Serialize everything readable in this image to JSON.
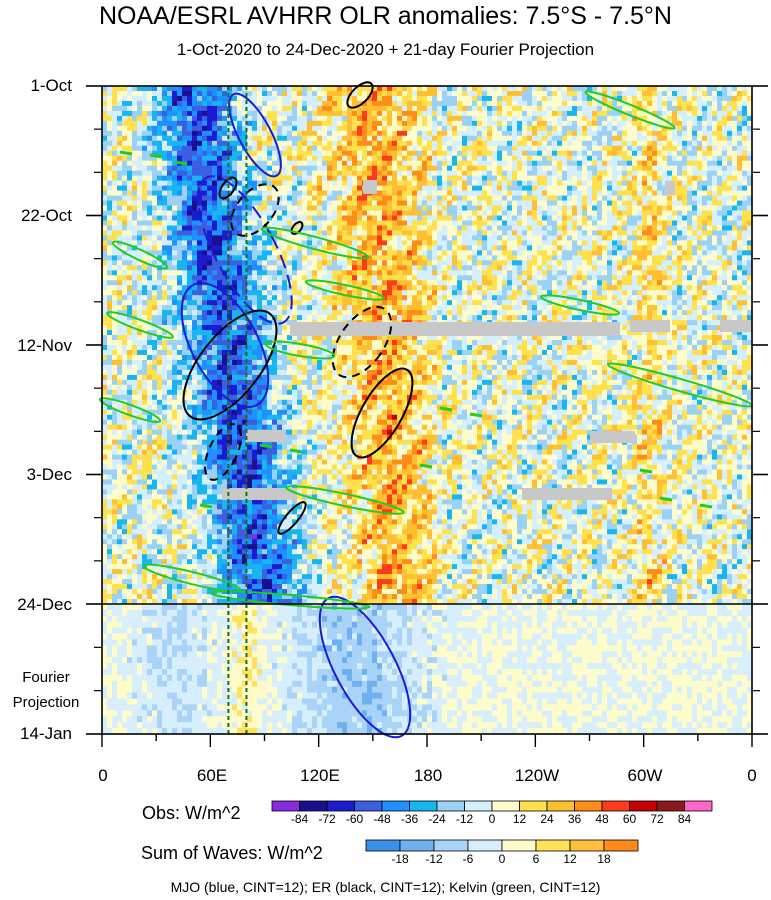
{
  "chart_data": {
    "type": "heatmap",
    "title": "NOAA/ESRL AVHRR OLR anomalies: 7.5°S - 7.5°N",
    "subtitle": "1-Oct-2020 to 24-Dec-2020 + 21-day Fourier Projection",
    "x_ticks": [
      "0",
      "60E",
      "120E",
      "180",
      "120W",
      "60W",
      "0"
    ],
    "x_range_degrees_east": [
      0,
      360
    ],
    "y_ticks": [
      "1-Oct",
      "22-Oct",
      "12-Nov",
      "3-Dec",
      "24-Dec",
      "14-Jan"
    ],
    "y_range": [
      "1-Oct-2020",
      "14-Jan-2021"
    ],
    "observation_end": "24-Dec",
    "projection_label": [
      "Fourier",
      "Projection"
    ],
    "obs_colorbar": {
      "title": "Obs: W/m^2",
      "levels": [
        -84,
        -72,
        -60,
        -48,
        -36,
        -24,
        -12,
        0,
        12,
        24,
        36,
        48,
        60,
        72,
        84
      ],
      "colors": [
        "#8a2be2",
        "#1a0f8c",
        "#1b1bd1",
        "#3a5fe0",
        "#1e90ff",
        "#18b6f0",
        "#9bd1f5",
        "#d4efff",
        "#fffccc",
        "#ffe14d",
        "#ffbf33",
        "#ff8c1a",
        "#ff3a1a",
        "#c80000",
        "#8b1a1a",
        "#ff66cc"
      ]
    },
    "waves_colorbar": {
      "title": "Sum of Waves: W/m^2",
      "levels": [
        -18,
        -12,
        -6,
        0,
        6,
        12,
        18
      ],
      "colors": [
        "#3a8fe8",
        "#6fb1f0",
        "#a9d3f7",
        "#d7eefc",
        "#fffccc",
        "#ffe15a",
        "#ffbf3a",
        "#ff8c1a"
      ]
    },
    "legend": "MJO (blue, CINT=12); ER (black, CINT=12); Kelvin (green, CINT=12)",
    "series": [
      {
        "name": "MJO",
        "color": "#1b1bd1",
        "contour_interval": 12
      },
      {
        "name": "ER",
        "color": "#000000",
        "contour_interval": 12
      },
      {
        "name": "Kelvin",
        "color": "#22cc22",
        "contour_interval": 12
      }
    ],
    "reference_longitudes": [
      70,
      80
    ]
  }
}
